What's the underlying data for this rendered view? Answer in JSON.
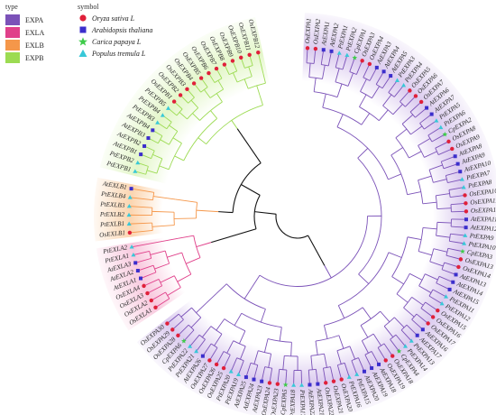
{
  "legend": {
    "type_title": "type",
    "types": [
      {
        "name": "EXPA",
        "color": "#7B52B8"
      },
      {
        "name": "EXLA",
        "color": "#E0408A"
      },
      {
        "name": "EXLB",
        "color": "#F5974A"
      },
      {
        "name": "EXPB",
        "color": "#9CDB52"
      }
    ],
    "symbol_title": "symbol",
    "symbols": [
      {
        "name": "Oryza sativa L",
        "shape": "circle",
        "color": "#E0203A"
      },
      {
        "name": "Arabidopsis thaliana",
        "shape": "square",
        "color": "#3B2ECC"
      },
      {
        "name": "Carica papaya L",
        "shape": "star",
        "color": "#3ECB4A"
      },
      {
        "name": "Populus tremula L",
        "shape": "triangle",
        "color": "#38C8D8"
      }
    ]
  },
  "tree": {
    "clades": [
      {
        "type": "EXPB",
        "color": "#9CDB52",
        "bg": "#E2F6C6",
        "leaves": [
          "PtEXPB1",
          "PtEXPB2",
          "AtEXPB1",
          "AtEXPB2",
          "AtEXPB3",
          "AtEXPB4",
          "PtEXPB3",
          "PtEXPB4",
          "PtEXPB5",
          "OsEXPB1",
          "OsEXPB2",
          "OsEXPB3",
          "OsEXPB4",
          "OsEXPB5",
          "OsEXPB6",
          "OsEXPB7",
          "OsEXPB8",
          "OsEXPB9",
          "OsEXPB10",
          "OsEXPB11",
          "OsEXPB12"
        ],
        "species": [
          "triangle",
          "triangle",
          "square",
          "square",
          "square",
          "square",
          "triangle",
          "triangle",
          "triangle",
          "circle",
          "circle",
          "circle",
          "circle",
          "circle",
          "circle",
          "circle",
          "circle",
          "circle",
          "circle",
          "circle",
          "circle"
        ]
      },
      {
        "type": "EXLB",
        "color": "#F5974A",
        "bg": "#FBD3AC",
        "leaves": [
          "OsEXLB1",
          "PtEXLB1",
          "PtEXLB2",
          "PtEXLB3",
          "PtEXLB4",
          "AtEXLB1"
        ],
        "species": [
          "circle",
          "triangle",
          "triangle",
          "triangle",
          "triangle",
          "square"
        ]
      },
      {
        "type": "EXLA",
        "color": "#E0408A",
        "bg": "#F8C6DC",
        "leaves": [
          "OsEXLA1",
          "OsEXLA2",
          "OsEXLA3",
          "OsEXLA4",
          "AtEXLA1",
          "AtEXLA2",
          "AtEXLA3",
          "PtEXLA1",
          "PtEXLA2"
        ],
        "species": [
          "circle",
          "circle",
          "circle",
          "circle",
          "square",
          "square",
          "square",
          "triangle",
          "triangle"
        ]
      },
      {
        "type": "EXPA",
        "color": "#7B52B8",
        "bg": "#D9C8EE",
        "leaves": [
          "OsEXPA1",
          "OsEXPA2",
          "AtEXPA1",
          "AtEXPA2",
          "PtEXPA1",
          "PtEXPA2",
          "CpEXPA1",
          "OsEXPA3",
          "OsEXPA4",
          "AtEXPA3",
          "AtEXPA4",
          "AtEXPA5",
          "PtEXPA3",
          "PtEXPA4",
          "OsEXPA5",
          "OsEXPA6",
          "OsEXPA7",
          "AtEXPA6",
          "AtEXPA7",
          "PtEXPA5",
          "PtEXPA6",
          "CpEXPA2",
          "OsEXPA8",
          "OsEXPA9",
          "AtEXPA8",
          "AtEXPA9",
          "AtEXPA10",
          "PtEXPA7",
          "PtEXPA8",
          "OsEXPA10",
          "OsEXPA11",
          "OsEXPA12",
          "AtEXPA11",
          "AtEXPA12",
          "PtEXPA9",
          "PtEXPA10",
          "CpEXPA3",
          "OsEXPA13",
          "OsEXPA14",
          "AtEXPA13",
          "AtEXPA14",
          "AtEXPA15",
          "PtEXPA11",
          "PtEXPA12",
          "OsEXPA15",
          "OsEXPA16",
          "OsEXPA17",
          "AtEXPA16",
          "AtEXPA17",
          "PtEXPA13",
          "PtEXPA14",
          "CpEXPA4",
          "OsEXPA18",
          "OsEXPA19",
          "AtEXPA18",
          "AtEXPA19",
          "AtEXPA20",
          "PtEXPA15",
          "PtEXPA16",
          "OsEXPA20",
          "OsEXPA21",
          "OsEXPA22",
          "AtEXPA21",
          "AtEXPA22",
          "PtEXPA17",
          "PtEXPA18",
          "CpEXPA5",
          "OsEXPA23",
          "OsEXPA24",
          "AtEXPA23",
          "AtEXPA24",
          "AtEXPA25",
          "PtEXPA19",
          "PtEXPA20",
          "OsEXPA25",
          "OsEXPA26",
          "OsEXPA27",
          "AtEXPA26",
          "PtEXPA21",
          "PtEXPA22",
          "CpEXPA6",
          "OsEXPA28",
          "OsEXPA29",
          "OsEXPA30"
        ],
        "species": [
          "circle",
          "circle",
          "square",
          "square",
          "triangle",
          "triangle",
          "star",
          "circle",
          "circle",
          "square",
          "square",
          "square",
          "triangle",
          "triangle",
          "circle",
          "circle",
          "circle",
          "square",
          "square",
          "triangle",
          "triangle",
          "star",
          "circle",
          "circle",
          "square",
          "square",
          "square",
          "triangle",
          "triangle",
          "circle",
          "circle",
          "circle",
          "square",
          "square",
          "triangle",
          "triangle",
          "star",
          "circle",
          "circle",
          "square",
          "square",
          "square",
          "triangle",
          "triangle",
          "circle",
          "circle",
          "circle",
          "square",
          "square",
          "triangle",
          "triangle",
          "star",
          "circle",
          "circle",
          "square",
          "square",
          "square",
          "triangle",
          "triangle",
          "circle",
          "circle",
          "circle",
          "square",
          "square",
          "triangle",
          "triangle",
          "star",
          "circle",
          "circle",
          "square",
          "square",
          "square",
          "triangle",
          "triangle",
          "circle",
          "circle",
          "circle",
          "square",
          "triangle",
          "triangle",
          "star",
          "circle",
          "circle",
          "circle"
        ]
      }
    ]
  }
}
